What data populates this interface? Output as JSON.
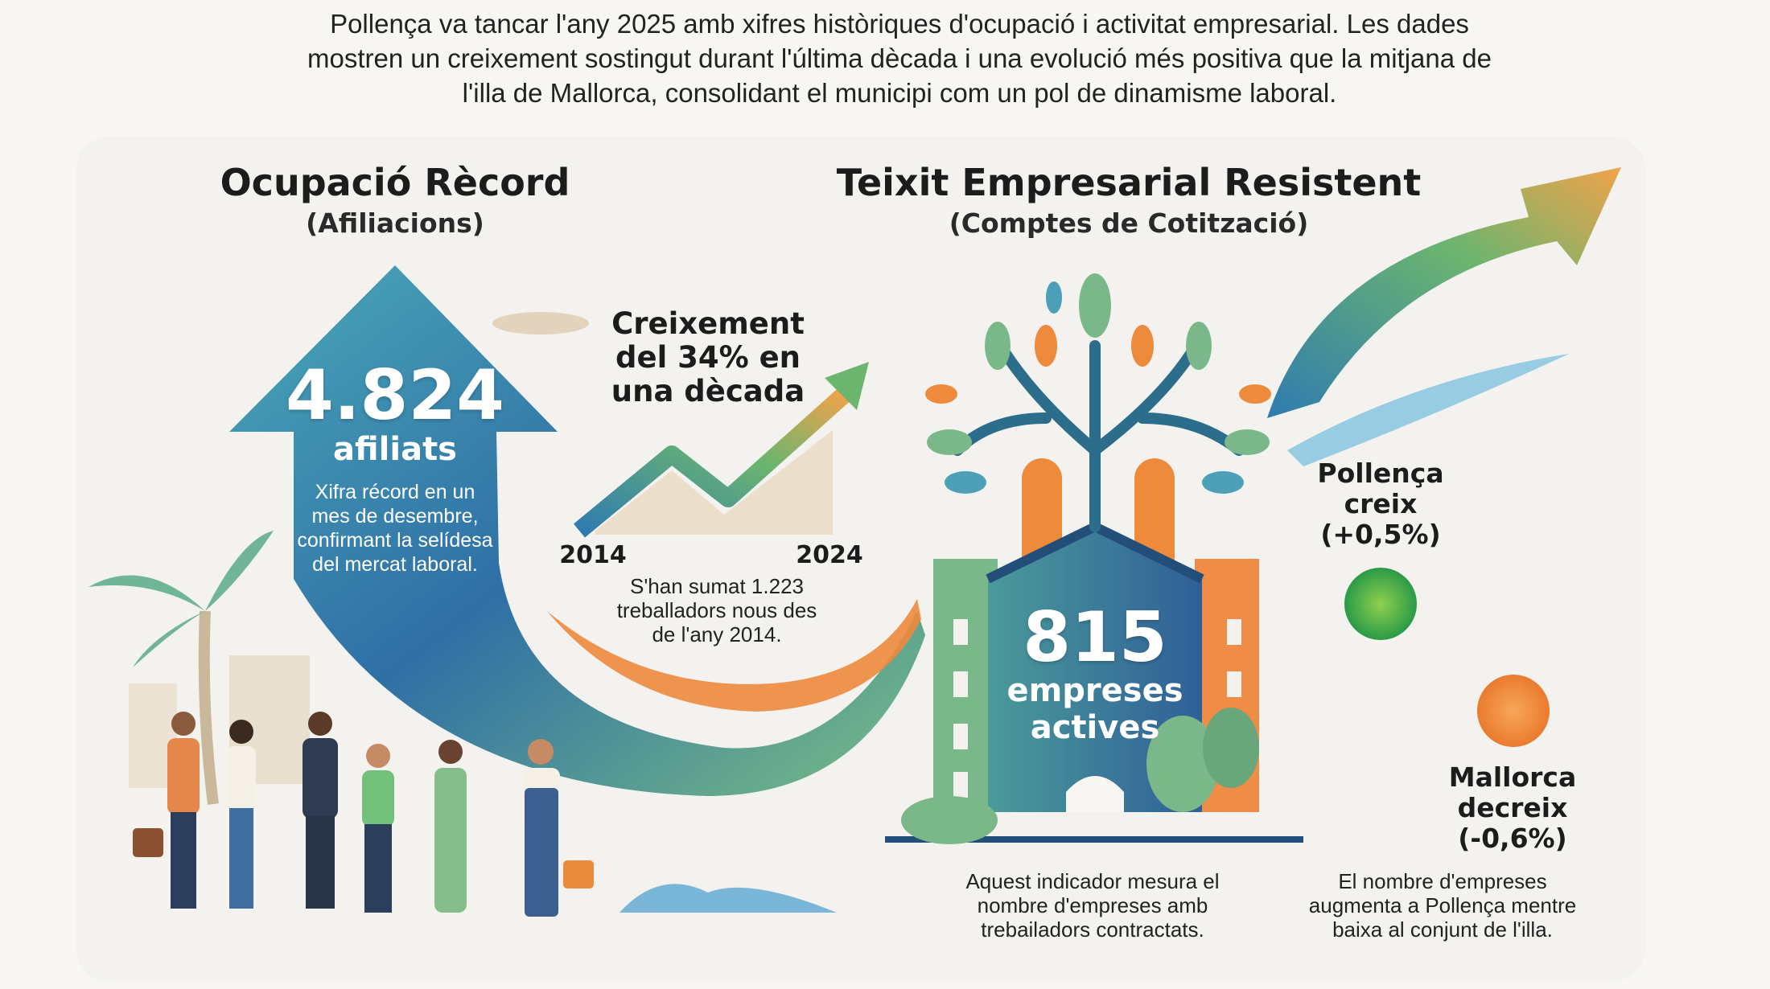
{
  "intro": {
    "lines": [
      "Pollença va tancar l'any 2025 amb xifres històriques d'ocupació i activitat empresarial. Les dades",
      "mostren un creixement sostingut durant l'última dècada i una evolució més positiva que la mitjana de",
      "l'illa de Mallorca, consolidant el municipi com un pol de dinamisme laboral."
    ]
  },
  "left": {
    "title": "Ocupació Rècord",
    "subtitle": "(Afiliacions)",
    "big_number": "4.824",
    "unit": "afiliats",
    "note_lines": [
      "Xifra récord en un",
      "mes de desembre,",
      "confirmant la selídesa",
      "del mercat laboral."
    ],
    "growth_lines": [
      "Creixement",
      "del 34% en",
      "una dècada"
    ],
    "year_start": "2014",
    "year_end": "2024",
    "added_lines": [
      "S'han sumat 1.223",
      "treballadors nous des",
      "de l'any 2014."
    ]
  },
  "right": {
    "title": "Teixit Empresarial Resistent",
    "subtitle": "(Comptes de Cotització)",
    "big_number": "815",
    "unit_lines": [
      "empreses",
      "actives"
    ],
    "pollenca_lines": [
      "Pollença",
      "creix",
      "(+0,5%)"
    ],
    "mallorca_lines": [
      "Mallorca",
      "decreix",
      "(-0,6%)"
    ],
    "indicator_lines": [
      "Aquest indicador mesura el",
      "nombre d'empreses amb",
      "trebailadors contractats."
    ],
    "compare_lines": [
      "El nombre d'empreses",
      "augmenta a Pollença mentre",
      "baixa al conjunt de l'illa."
    ]
  },
  "colors": {
    "blue": "#2f6fa6",
    "teal": "#4aa3a8",
    "green": "#6bb56f",
    "orange": "#ee8a3c",
    "pollenca_dot": "#3aa34a",
    "mallorca_dot": "#f08a3a"
  }
}
